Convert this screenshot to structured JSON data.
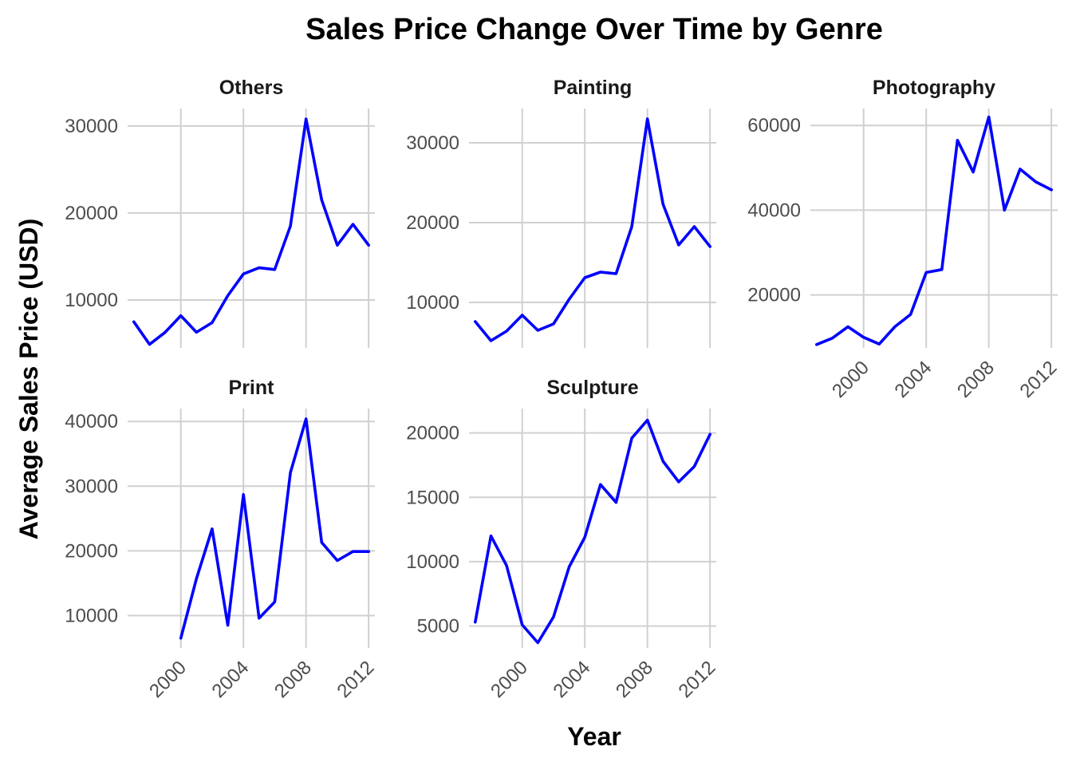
{
  "chart_data": {
    "type": "line",
    "title": "Sales Price Change Over Time by Genre",
    "xlabel": "Year",
    "ylabel": "Average Sales Price (USD)",
    "line_color": "#0000ff",
    "grid": true,
    "x_ticks": [
      2000,
      2004,
      2008,
      2012
    ],
    "xlim": [
      1996.6,
      2012.4
    ],
    "x": [
      1997,
      1998,
      1999,
      2000,
      2001,
      2002,
      2003,
      2004,
      2005,
      2006,
      2007,
      2008,
      2009,
      2010,
      2011,
      2012
    ],
    "facets": [
      {
        "name": "Others",
        "ylim": [
          4500,
          32000
        ],
        "y_ticks": [
          10000,
          20000,
          30000
        ],
        "values": [
          7500,
          4900,
          6300,
          8200,
          6300,
          7400,
          10500,
          13000,
          13700,
          13500,
          18500,
          30800,
          21500,
          16300,
          18700,
          16300
        ]
      },
      {
        "name": "Painting",
        "ylim": [
          4300,
          34300
        ],
        "y_ticks": [
          10000,
          20000,
          30000
        ],
        "values": [
          7600,
          5200,
          6400,
          8400,
          6500,
          7300,
          10400,
          13100,
          13800,
          13600,
          19500,
          33000,
          22300,
          17200,
          19500,
          17000
        ]
      },
      {
        "name": "Photography",
        "ylim": [
          7500,
          64000
        ],
        "y_ticks": [
          20000,
          40000,
          60000
        ],
        "values": [
          8300,
          9800,
          12500,
          10000,
          8400,
          12500,
          15400,
          25300,
          26000,
          56500,
          49000,
          62000,
          40000,
          49700,
          46700,
          44800
        ]
      },
      {
        "name": "Print",
        "ylim": [
          5000,
          42000
        ],
        "y_ticks": [
          10000,
          20000,
          30000,
          40000
        ],
        "values": [
          null,
          null,
          null,
          6500,
          15700,
          23400,
          8500,
          28700,
          9600,
          12100,
          32100,
          40400,
          21300,
          18500,
          19900,
          19900
        ]
      },
      {
        "name": "Sculpture",
        "ylim": [
          3300,
          21900
        ],
        "y_ticks": [
          5000,
          10000,
          15000,
          20000
        ],
        "values": [
          5300,
          12000,
          9700,
          5100,
          3700,
          5700,
          9600,
          11900,
          16000,
          14600,
          19600,
          21000,
          17800,
          16200,
          17400,
          19900
        ]
      }
    ]
  }
}
